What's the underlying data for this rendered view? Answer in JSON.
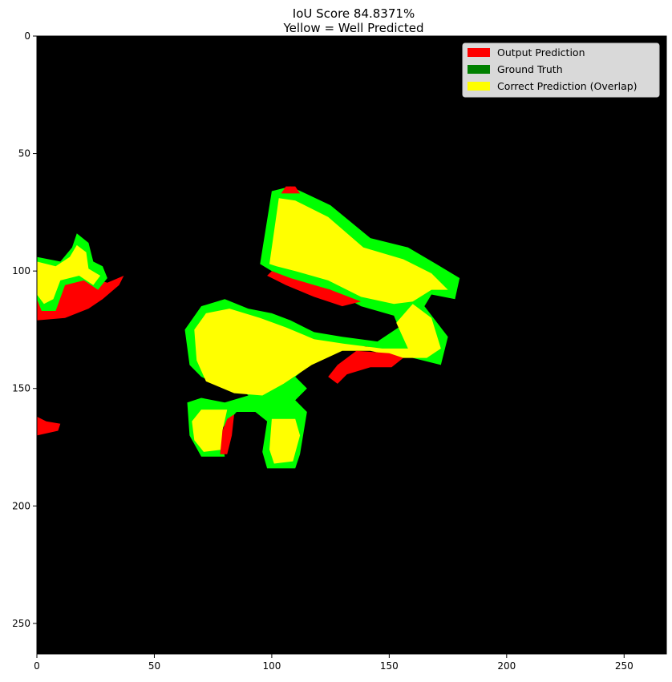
{
  "chart_data": {
    "type": "heatmap",
    "title_lines": [
      "IoU Score 84.8371%",
      "Yellow = Well Predicted"
    ],
    "xlabel": "",
    "ylabel": "",
    "xlim": [
      0,
      268
    ],
    "ylim": [
      263,
      0
    ],
    "xticks": [
      0,
      50,
      100,
      150,
      200,
      250
    ],
    "yticks": [
      0,
      50,
      100,
      150,
      200,
      250
    ],
    "grid": false,
    "legend_position": "top-right",
    "legend": [
      {
        "label": "Output Prediction",
        "color": "#ff0000"
      },
      {
        "label": "Ground Truth",
        "color": "#008000"
      },
      {
        "label": "Correct Prediction (Overlap)",
        "color": "#ffff00"
      }
    ],
    "background_color": "#000000",
    "region_colors": {
      "output_prediction": "#ff0000",
      "ground_truth": "#00ff00",
      "overlap": "#ffff00"
    },
    "regions": [
      {
        "class": "ground_truth",
        "points": [
          [
            95,
            97
          ],
          [
            100,
            66
          ],
          [
            108,
            64
          ],
          [
            125,
            72
          ],
          [
            142,
            86
          ],
          [
            158,
            90
          ],
          [
            170,
            97
          ],
          [
            180,
            103
          ],
          [
            178,
            112
          ],
          [
            168,
            110
          ],
          [
            165,
            115
          ],
          [
            175,
            128
          ],
          [
            172,
            140
          ],
          [
            160,
            137
          ],
          [
            154,
            135
          ],
          [
            140,
            132
          ],
          [
            126,
            132
          ],
          [
            110,
            145
          ],
          [
            115,
            150
          ],
          [
            110,
            155
          ],
          [
            115,
            160
          ],
          [
            112,
            178
          ],
          [
            110,
            184
          ],
          [
            98,
            184
          ],
          [
            96,
            177
          ],
          [
            98,
            164
          ],
          [
            93,
            160
          ],
          [
            85,
            160
          ],
          [
            78,
            168
          ],
          [
            80,
            179
          ],
          [
            70,
            179
          ],
          [
            65,
            170
          ],
          [
            64,
            156
          ],
          [
            70,
            154
          ],
          [
            80,
            156
          ],
          [
            90,
            153
          ],
          [
            87,
            150
          ],
          [
            80,
            150
          ],
          [
            70,
            145
          ],
          [
            65,
            140
          ],
          [
            63,
            125
          ],
          [
            70,
            115
          ],
          [
            80,
            112
          ],
          [
            90,
            116
          ],
          [
            100,
            118
          ],
          [
            108,
            121
          ],
          [
            118,
            126
          ],
          [
            130,
            128
          ],
          [
            145,
            130
          ],
          [
            154,
            124
          ],
          [
            152,
            119
          ],
          [
            138,
            115
          ],
          [
            125,
            108
          ],
          [
            110,
            104
          ],
          [
            100,
            100
          ]
        ]
      },
      {
        "class": "overlap",
        "points": [
          [
            99,
            97
          ],
          [
            103,
            69
          ],
          [
            110,
            70
          ],
          [
            124,
            77
          ],
          [
            139,
            90
          ],
          [
            156,
            95
          ],
          [
            168,
            101
          ],
          [
            175,
            108
          ],
          [
            168,
            108
          ],
          [
            160,
            113
          ],
          [
            152,
            114
          ],
          [
            138,
            111
          ],
          [
            124,
            104
          ],
          [
            110,
            100
          ],
          [
            102,
            98
          ]
        ]
      },
      {
        "class": "overlap",
        "points": [
          [
            67,
            125
          ],
          [
            72,
            118
          ],
          [
            82,
            116
          ],
          [
            95,
            120
          ],
          [
            106,
            124
          ],
          [
            118,
            129
          ],
          [
            131,
            131
          ],
          [
            147,
            133
          ],
          [
            158,
            133
          ],
          [
            153,
            122
          ],
          [
            160,
            114
          ],
          [
            168,
            120
          ],
          [
            172,
            133
          ],
          [
            166,
            137
          ],
          [
            155,
            137
          ],
          [
            142,
            134
          ],
          [
            130,
            134
          ],
          [
            117,
            140
          ],
          [
            105,
            148
          ],
          [
            96,
            153
          ],
          [
            84,
            152
          ],
          [
            72,
            147
          ],
          [
            68,
            138
          ]
        ]
      },
      {
        "class": "overlap",
        "points": [
          [
            66,
            164
          ],
          [
            70,
            159
          ],
          [
            81,
            159
          ],
          [
            79,
            168
          ],
          [
            79,
            176
          ],
          [
            71,
            177
          ],
          [
            67,
            172
          ]
        ]
      },
      {
        "class": "overlap",
        "points": [
          [
            100,
            163
          ],
          [
            110,
            163
          ],
          [
            112,
            170
          ],
          [
            109,
            181
          ],
          [
            101,
            182
          ],
          [
            99,
            176
          ]
        ]
      },
      {
        "class": "output_prediction",
        "points": [
          [
            100,
            100
          ],
          [
            108,
            103
          ],
          [
            125,
            108
          ],
          [
            138,
            113
          ],
          [
            130,
            115
          ],
          [
            118,
            111
          ],
          [
            106,
            106
          ],
          [
            98,
            102
          ]
        ]
      },
      {
        "class": "output_prediction",
        "points": [
          [
            136,
            134
          ],
          [
            150,
            135
          ],
          [
            156,
            137
          ],
          [
            151,
            141
          ],
          [
            142,
            141
          ],
          [
            132,
            144
          ],
          [
            128,
            148
          ],
          [
            124,
            145
          ],
          [
            128,
            140
          ]
        ]
      },
      {
        "class": "output_prediction",
        "points": [
          [
            106,
            64
          ],
          [
            110,
            64
          ],
          [
            112,
            67
          ],
          [
            104,
            67
          ]
        ]
      },
      {
        "class": "output_prediction",
        "points": [
          [
            81,
            163
          ],
          [
            84,
            161
          ],
          [
            83,
            170
          ],
          [
            81,
            178
          ],
          [
            78,
            178
          ],
          [
            79,
            168
          ]
        ]
      },
      {
        "class": "output_prediction",
        "points": [
          [
            0,
            99
          ],
          [
            8,
            96
          ],
          [
            20,
            102
          ],
          [
            30,
            105
          ],
          [
            37,
            102
          ],
          [
            35,
            106
          ],
          [
            28,
            112
          ],
          [
            22,
            116
          ],
          [
            12,
            120
          ],
          [
            0,
            121
          ]
        ]
      },
      {
        "class": "ground_truth",
        "points": [
          [
            0,
            94
          ],
          [
            10,
            96
          ],
          [
            15,
            90
          ],
          [
            17,
            84
          ],
          [
            22,
            88
          ],
          [
            24,
            96
          ],
          [
            28,
            98
          ],
          [
            30,
            103
          ],
          [
            26,
            108
          ],
          [
            20,
            104
          ],
          [
            12,
            106
          ],
          [
            8,
            117
          ],
          [
            2,
            117
          ],
          [
            0,
            112
          ]
        ]
      },
      {
        "class": "overlap",
        "points": [
          [
            0,
            96
          ],
          [
            8,
            98
          ],
          [
            14,
            94
          ],
          [
            17,
            89
          ],
          [
            21,
            92
          ],
          [
            22,
            99
          ],
          [
            27,
            102
          ],
          [
            24,
            106
          ],
          [
            18,
            102
          ],
          [
            10,
            104
          ],
          [
            7,
            112
          ],
          [
            3,
            114
          ],
          [
            0,
            110
          ]
        ]
      },
      {
        "class": "output_prediction",
        "points": [
          [
            0,
            162
          ],
          [
            4,
            164
          ],
          [
            10,
            165
          ],
          [
            9,
            168
          ],
          [
            0,
            170
          ]
        ]
      }
    ]
  }
}
